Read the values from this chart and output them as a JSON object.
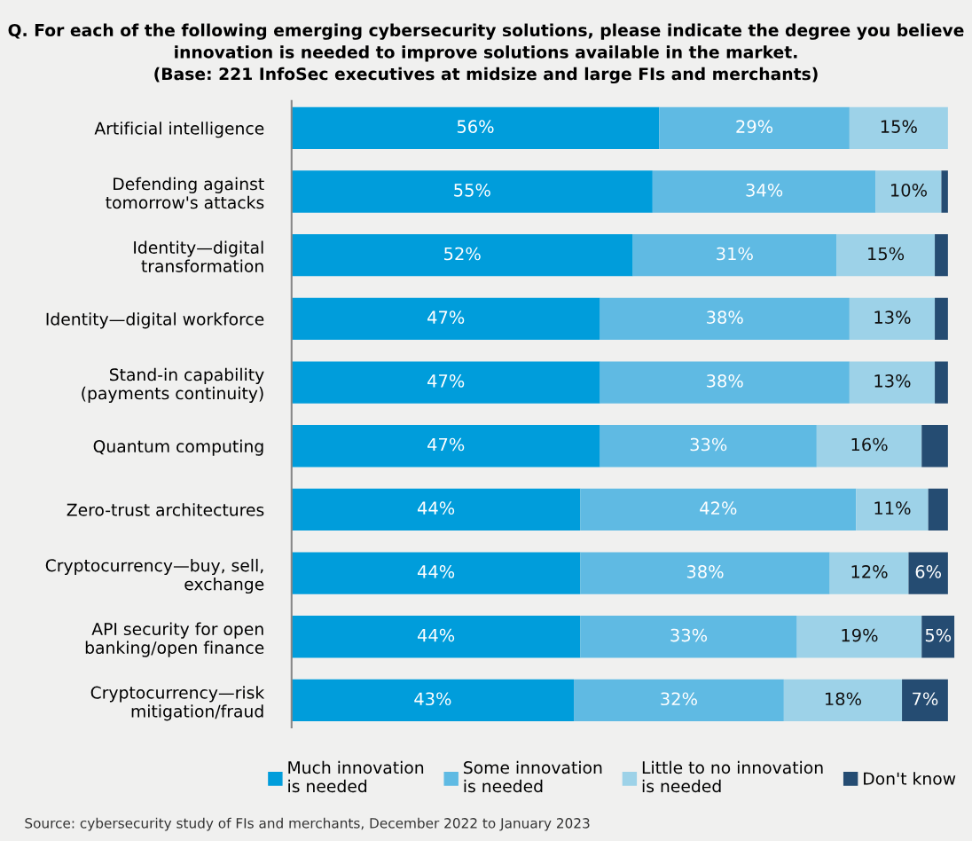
{
  "chart_data": {
    "type": "bar",
    "orientation": "horizontal",
    "stacked": true,
    "title": "Q. For each of the following emerging cybersecurity solutions, please indicate the degree you believe\ninnovation is needed to improve solutions available in the market.\n(Base: 221 InfoSec executives at midsize and large FIs and merchants)",
    "categories": [
      "Artificial intelligence",
      "Defending against\ntomorrow's attacks",
      "Identity—digital\ntransformation",
      "Identity—digital workforce",
      "Stand-in capability\n(payments continuity)",
      "Quantum computing",
      "Zero-trust architectures",
      "Cryptocurrency—buy, sell,\nexchange",
      "API security for open\nbanking/open finance",
      "Cryptocurrency—risk\nmitigation/fraud"
    ],
    "series": [
      {
        "name": "Much innovation\nis needed",
        "color": "#009ddb",
        "values": [
          56,
          55,
          52,
          47,
          47,
          47,
          44,
          44,
          44,
          43
        ],
        "value_labels": [
          "56%",
          "55%",
          "52%",
          "47%",
          "47%",
          "47%",
          "44%",
          "44%",
          "44%",
          "43%"
        ]
      },
      {
        "name": "Some innovation\nis needed",
        "color": "#5fbae3",
        "values": [
          29,
          34,
          31,
          38,
          38,
          33,
          42,
          38,
          33,
          32
        ],
        "value_labels": [
          "29%",
          "34%",
          "31%",
          "38%",
          "38%",
          "33%",
          "42%",
          "38%",
          "33%",
          "32%"
        ]
      },
      {
        "name": "Little to no innovation\nis needed",
        "color": "#9dd2e8",
        "values": [
          15,
          10,
          15,
          13,
          13,
          16,
          11,
          12,
          19,
          18
        ],
        "value_labels": [
          "15%",
          "10%",
          "15%",
          "13%",
          "13%",
          "16%",
          "11%",
          "12%",
          "19%",
          "18%"
        ]
      },
      {
        "name": "Don't know",
        "color": "#254c72",
        "values": [
          0,
          1,
          2,
          2,
          2,
          4,
          3,
          6,
          5,
          7
        ],
        "value_labels": [
          null,
          null,
          null,
          null,
          null,
          null,
          null,
          "6%",
          "5%",
          "7%"
        ]
      }
    ],
    "legend": "bottom",
    "tick_labels": "y",
    "grid": false,
    "annotations": [
      "Source: cybersecurity study of FIs and merchants, December 2022 to January 2023"
    ]
  }
}
